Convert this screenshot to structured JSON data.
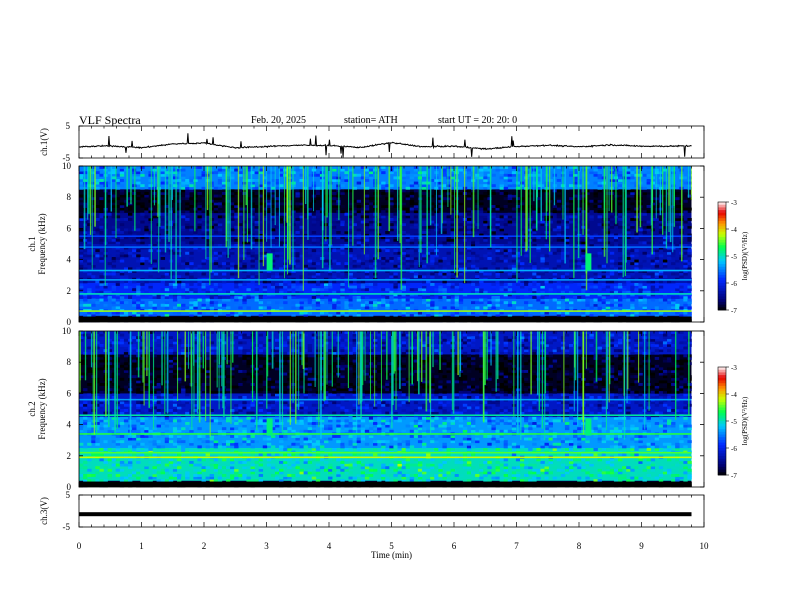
{
  "header": {
    "title": "VLF  Spectra",
    "date": "Feb. 20, 2025",
    "station": "station= ATH",
    "start": "start  UT  =   20: 20: 0"
  },
  "chart_data": [
    {
      "type": "line",
      "panel": "ch1-waveform",
      "ylabel": "ch.1(V)",
      "ylim": [
        -5,
        5
      ],
      "yticks": [
        5,
        -5
      ],
      "xlim": [
        0,
        10
      ],
      "series": [
        {
          "values_description_hidden": true,
          "x": [
            0,
            0.5,
            1,
            1.5,
            2,
            2.5,
            3,
            3.5,
            4,
            4.5,
            5,
            5.5,
            6,
            6.5,
            7,
            7.5,
            8,
            8.5,
            9,
            9.5,
            9.8
          ],
          "y": [
            -1.5,
            -1.2,
            -1.8,
            -0.6,
            -0.3,
            -1.8,
            -1.4,
            -1.0,
            -1.1,
            -1.7,
            -0.2,
            -1.5,
            -1.3,
            -2.2,
            -1.4,
            -1.0,
            -1.5,
            -0.9,
            -1.3,
            -1.3,
            -1.2
          ]
        }
      ],
      "color": "#000000"
    },
    {
      "type": "heatmap",
      "panel": "ch1-spectrogram",
      "ylabel": "Frequency (kHz)",
      "channel_label": "ch.1",
      "ylim": [
        0,
        10
      ],
      "yticks": [
        0,
        2,
        4,
        6,
        8,
        10
      ],
      "xlim": [
        0,
        10
      ],
      "data_extent_min": 9.8,
      "colorbar": {
        "label": "log(PSD)(V²/Hz)",
        "range": [
          -7,
          -3
        ],
        "ticks": [
          "-3",
          "-4",
          "-5",
          "-6",
          "-7"
        ]
      },
      "bands": [
        {
          "f": [
            0,
            0.4
          ],
          "level": -6.8
        },
        {
          "f": [
            0.4,
            1.5
          ],
          "level": -5.6
        },
        {
          "f": [
            1.5,
            2.5
          ],
          "level": -5.9
        },
        {
          "f": [
            2.5,
            5.0
          ],
          "level": -6.3
        },
        {
          "f": [
            5.0,
            7.0
          ],
          "level": -6.5
        },
        {
          "f": [
            7.0,
            8.5
          ],
          "level": -6.9
        },
        {
          "f": [
            8.5,
            10
          ],
          "level": -5.5
        }
      ],
      "lines": [
        {
          "f": 0.7,
          "level": -4.3
        },
        {
          "f": 1.8,
          "level": -5.0
        },
        {
          "f": 2.7,
          "level": -5.4
        },
        {
          "f": 3.3,
          "level": -5.3
        },
        {
          "f": 4.8,
          "level": -5.6
        },
        {
          "f": 5.5,
          "level": -5.8
        }
      ],
      "bursts_min": [
        3.05,
        8.15
      ]
    },
    {
      "type": "heatmap",
      "panel": "ch2-spectrogram",
      "ylabel": "Frequency (kHz)",
      "channel_label": "ch.2",
      "ylim": [
        0,
        10
      ],
      "yticks": [
        0,
        2,
        4,
        6,
        8,
        10
      ],
      "xlim": [
        0,
        10
      ],
      "data_extent_min": 9.8,
      "colorbar": {
        "label": "log(PSD)(V²/Hz)",
        "range": [
          -7,
          -3
        ],
        "ticks": [
          "-3",
          "-4",
          "-5",
          "-6",
          "-7"
        ]
      },
      "bands": [
        {
          "f": [
            0,
            0.4
          ],
          "level": -6.8
        },
        {
          "f": [
            0.4,
            2.5
          ],
          "level": -5.0
        },
        {
          "f": [
            2.5,
            4.5
          ],
          "level": -5.4
        },
        {
          "f": [
            4.5,
            6.0
          ],
          "level": -6.2
        },
        {
          "f": [
            6.0,
            8.5
          ],
          "level": -6.9
        },
        {
          "f": [
            8.5,
            10
          ],
          "level": -6.2
        }
      ],
      "lines": [
        {
          "f": 1.9,
          "level": -4.2
        },
        {
          "f": 2.2,
          "level": -4.5
        },
        {
          "f": 3.4,
          "level": -4.6
        },
        {
          "f": 4.6,
          "level": -4.9
        },
        {
          "f": 5.6,
          "level": -5.4
        }
      ],
      "bursts_min": [
        3.05,
        8.15
      ]
    },
    {
      "type": "line",
      "panel": "ch3-waveform",
      "ylabel": "ch.3(V)",
      "ylim": [
        -5,
        5
      ],
      "yticks": [
        5,
        -5
      ],
      "xlim": [
        0,
        10
      ],
      "series": [
        {
          "x": [
            0,
            9.8
          ],
          "y": [
            -1,
            -1
          ]
        }
      ],
      "color": "#000000"
    }
  ],
  "xaxis": {
    "label": "Time  (min)",
    "ticks": [
      "0",
      "1",
      "2",
      "3",
      "4",
      "5",
      "6",
      "7",
      "8",
      "9",
      "10"
    ]
  }
}
